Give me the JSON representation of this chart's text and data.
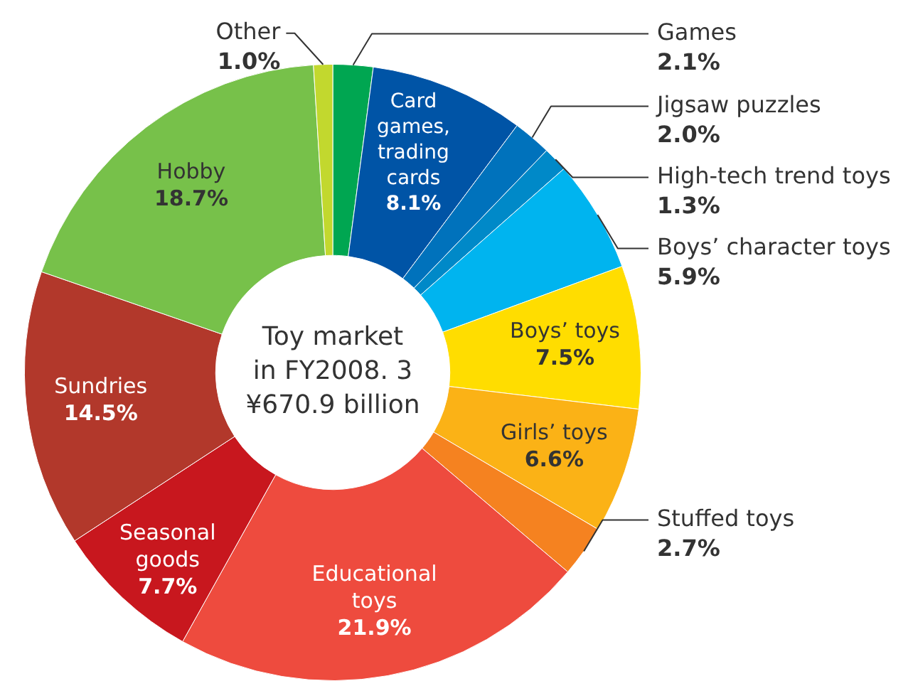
{
  "chart_data": {
    "type": "donut",
    "categories": [
      "Games",
      "Card games, trading cards",
      "Jigsaw puzzles",
      "High-tech trend toys",
      "Boys’ character toys",
      "Boys’ toys",
      "Girls’ toys",
      "Stuffed toys",
      "Educational toys",
      "Seasonal goods",
      "Sundries",
      "Hobby",
      "Other"
    ],
    "values": [
      2.1,
      8.1,
      2.0,
      1.3,
      5.9,
      7.5,
      6.6,
      2.7,
      21.9,
      7.7,
      14.5,
      18.7,
      1.0
    ],
    "value_labels": [
      "2.1%",
      "8.1%",
      "2.0%",
      "1.3%",
      "5.9%",
      "7.5%",
      "6.6%",
      "2.7%",
      "21.9%",
      "7.7%",
      "14.5%",
      "18.7%",
      "1.0%"
    ],
    "colors": [
      "#00a651",
      "#0054a6",
      "#0072bc",
      "#0089c8",
      "#00b4ef",
      "#ffdd00",
      "#fbb216",
      "#f58220",
      "#ee4b3e",
      "#c8171e",
      "#b2382b",
      "#77c14a",
      "#c2d82e"
    ],
    "annotations": [
      "Toy market\nin FY2008. 3\n¥670.9 billion"
    ],
    "legend": false
  }
}
